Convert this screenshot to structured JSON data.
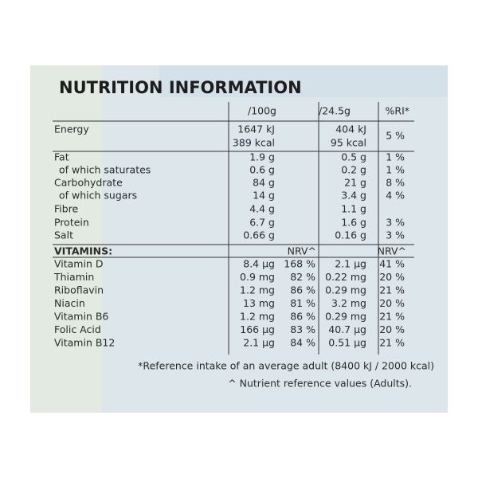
{
  "title": "NUTRITION INFORMATION",
  "header": {
    "per_100g": "/100g",
    "per_serving": "/24.5g",
    "ri": "%RI*"
  },
  "nutrients": [
    {
      "name": "Energy",
      "per_100g": [
        "1647 kJ",
        "389 kcal"
      ],
      "per_serving": [
        "404 kJ",
        "95 kcal"
      ],
      "ri": "5 %"
    },
    {
      "name": "Fat",
      "per_100g": "1.9 g",
      "per_serving": "0.5 g",
      "ri": "1 %"
    },
    {
      "name": "of which saturates",
      "sub": true,
      "per_100g": "0.6 g",
      "per_serving": "0.2 g",
      "ri": "1 %"
    },
    {
      "name": "Carbohydrate",
      "per_100g": "84 g",
      "per_serving": "21 g",
      "ri": "8 %"
    },
    {
      "name": "of which sugars",
      "sub": true,
      "per_100g": "14 g",
      "per_serving": "3.4 g",
      "ri": "4 %"
    },
    {
      "name": "Fibre",
      "per_100g": "4.4 g",
      "per_serving": "1.1 g",
      "ri": null
    },
    {
      "name": "Protein",
      "per_100g": "6.7 g",
      "per_serving": "1.6 g",
      "ri": "3 %"
    },
    {
      "name": "Salt",
      "per_100g": "0.66 g",
      "per_serving": "0.16 g",
      "ri": "3 %"
    }
  ],
  "vitamins": {
    "header": {
      "name": "VITAMINS:",
      "nrv_100g": "NRV^",
      "nrv_serving": "NRV^"
    },
    "rows": [
      {
        "name": "Vitamin D",
        "per_100g": "8.4 µg",
        "nrv_100g": "168 %",
        "per_serving": "2.1 µg",
        "nrv_serving": "41 %"
      },
      {
        "name": "Thiamin",
        "per_100g": "0.9 mg",
        "nrv_100g": "82 %",
        "per_serving": "0.22 mg",
        "nrv_serving": "20 %"
      },
      {
        "name": "Riboflavin",
        "per_100g": "1.2 mg",
        "nrv_100g": "86 %",
        "per_serving": "0.29 mg",
        "nrv_serving": "21 %"
      },
      {
        "name": "Niacin",
        "per_100g": "13 mg",
        "nrv_100g": "81 %",
        "per_serving": "3.2 mg",
        "nrv_serving": "20 %"
      },
      {
        "name": "Vitamin B6",
        "per_100g": "1.2 mg",
        "nrv_100g": "86 %",
        "per_serving": "0.29 mg",
        "nrv_serving": "21 %"
      },
      {
        "name": "Folic Acid",
        "per_100g": "166 µg",
        "nrv_100g": "83 %",
        "per_serving": "40.7 µg",
        "nrv_serving": "20 %"
      },
      {
        "name": "Vitamin B12",
        "per_100g": "2.1 µg",
        "nrv_100g": "84 %",
        "per_serving": "0.51 µg",
        "nrv_serving": "21 %"
      }
    ]
  },
  "footnotes": [
    "*Reference intake of an average adult (8400 kJ / 2000 kcal)",
    "^ Nutrient reference values (Adults)."
  ]
}
